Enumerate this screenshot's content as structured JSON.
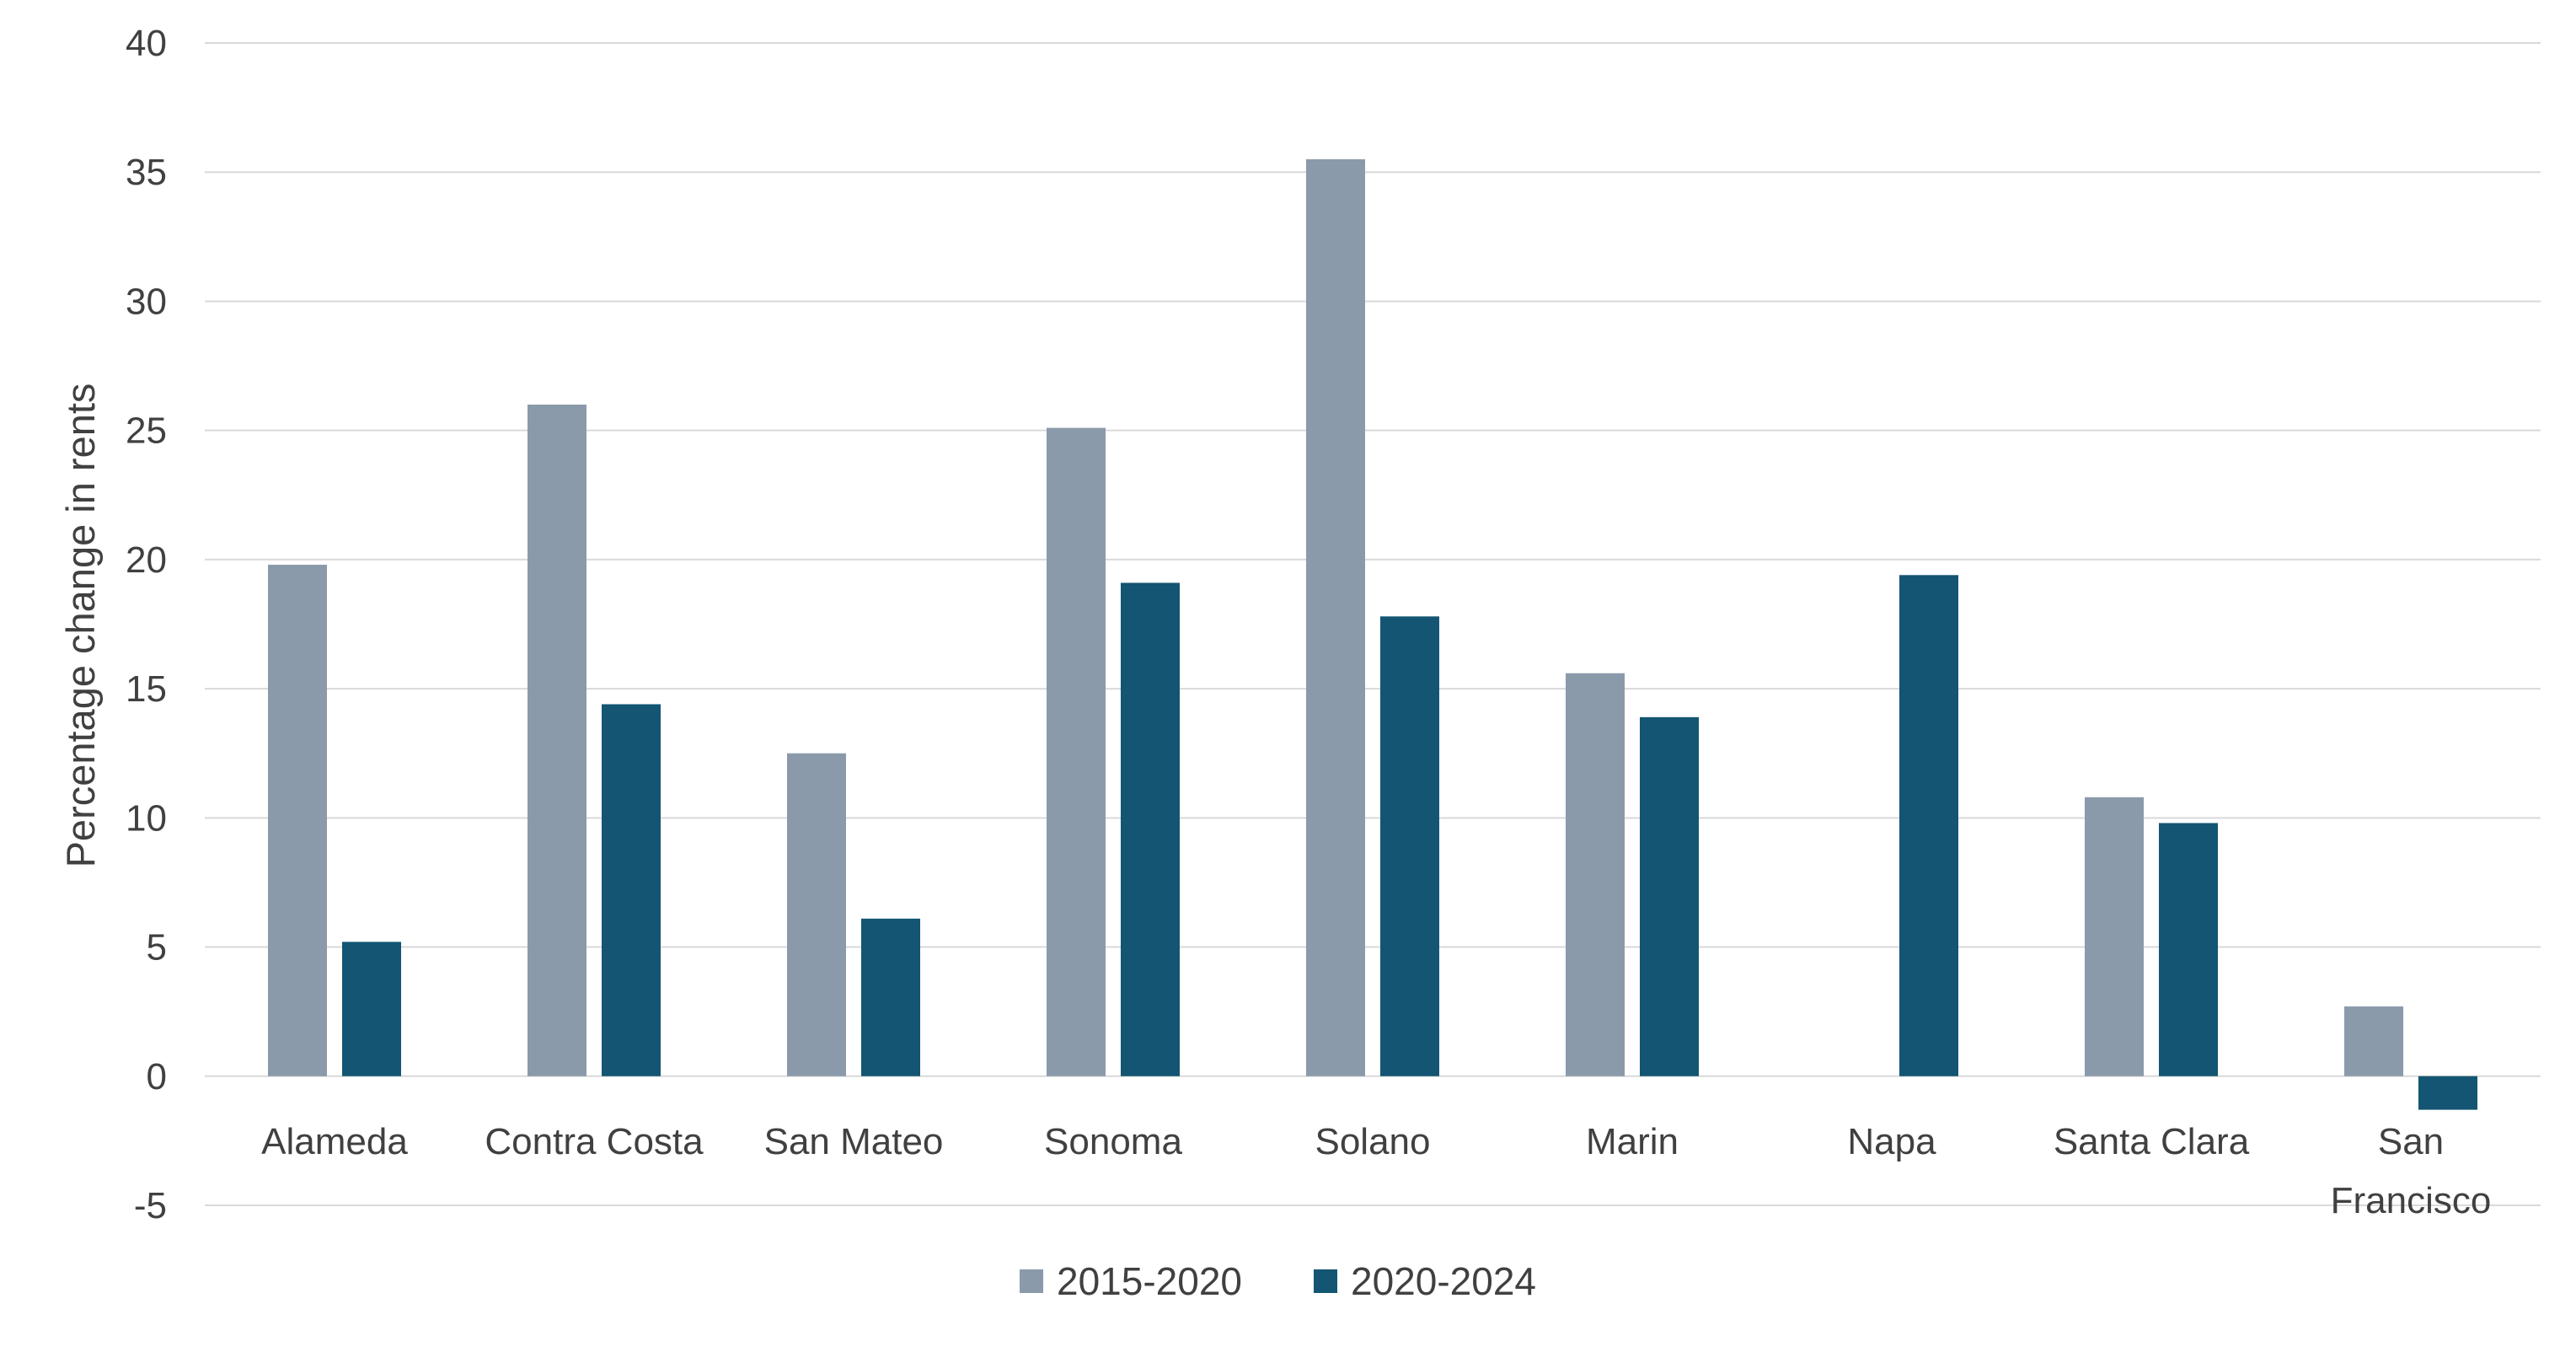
{
  "chart_data": {
    "type": "bar",
    "title": "",
    "xlabel": "",
    "ylabel": "Percentage change in rents",
    "ylim": [
      -5,
      40
    ],
    "yticks": [
      -5,
      0,
      5,
      10,
      15,
      20,
      25,
      30,
      35,
      40
    ],
    "grid": true,
    "legend_position": "bottom",
    "categories": [
      [
        "Alameda"
      ],
      [
        "Contra Costa"
      ],
      [
        "San Mateo"
      ],
      [
        "Sonoma"
      ],
      [
        "Solano"
      ],
      [
        "Marin"
      ],
      [
        "Napa"
      ],
      [
        "Santa Clara"
      ],
      [
        "San",
        "Francisco"
      ]
    ],
    "series": [
      {
        "name": "2015-2020",
        "color": "#8a9aab",
        "values": [
          19.8,
          26.0,
          12.5,
          25.1,
          35.5,
          15.6,
          null,
          10.8,
          2.7
        ]
      },
      {
        "name": "2020-2024",
        "color": "#135572",
        "values": [
          5.2,
          14.4,
          6.1,
          19.1,
          17.8,
          13.9,
          19.4,
          9.8,
          -1.3
        ]
      }
    ]
  }
}
